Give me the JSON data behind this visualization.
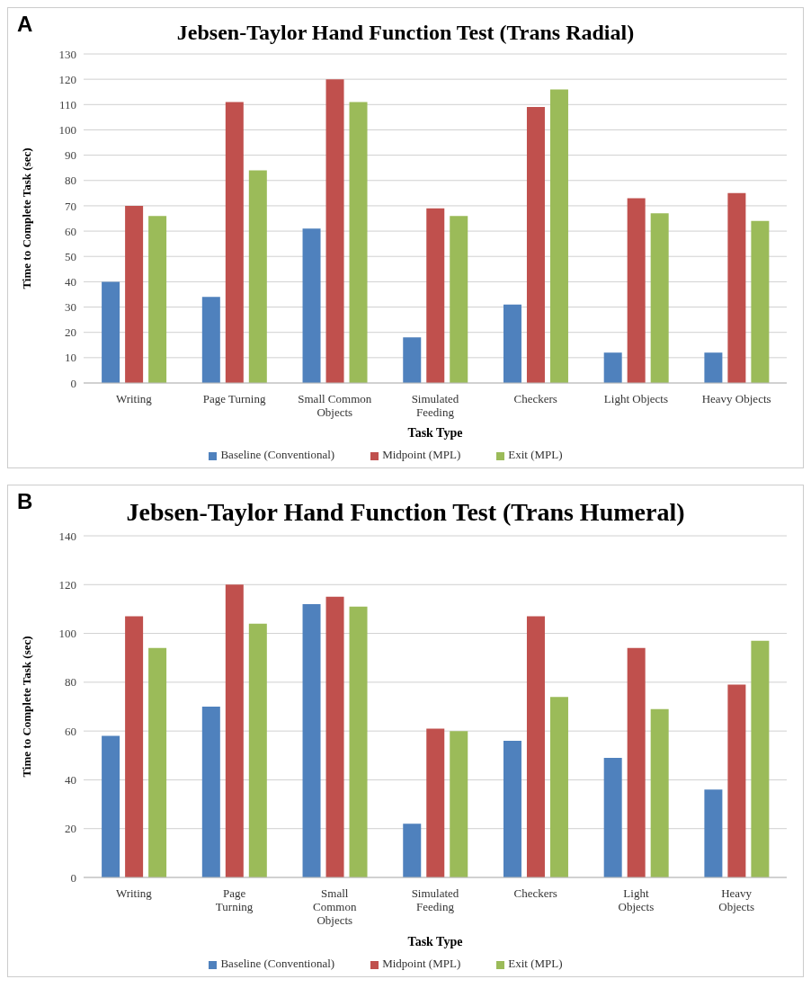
{
  "chart_data": [
    {
      "type": "bar",
      "title": "Jebsen-Taylor Hand Function Test (Trans Radial)",
      "annotations": [
        "A"
      ],
      "xlabel": "Task Type",
      "ylabel": "Time to Complete Task (sec)",
      "categories": [
        "Writing",
        "Page Turning",
        "Small Common Objects",
        "Simulated Feeding",
        "Checkers",
        "Light Objects",
        "Heavy Objects"
      ],
      "series": [
        {
          "name": "Baseline (Conventional)",
          "color": "#4f81bd",
          "values": [
            40,
            34,
            61,
            18,
            31,
            12,
            12
          ]
        },
        {
          "name": "Midpoint (MPL)",
          "color": "#c0504d",
          "values": [
            70,
            111,
            120,
            69,
            109,
            73,
            75
          ]
        },
        {
          "name": "Exit (MPL)",
          "color": "#9bbb59",
          "values": [
            66,
            84,
            111,
            66,
            116,
            67,
            64
          ]
        }
      ],
      "ylim": [
        0,
        130
      ],
      "yticks": [
        0,
        10,
        20,
        30,
        40,
        50,
        60,
        70,
        80,
        90,
        100,
        110,
        120,
        130
      ],
      "grid": "y",
      "legend": "bottom"
    },
    {
      "type": "bar",
      "title": "Jebsen-Taylor Hand Function Test (Trans Humeral)",
      "annotations": [
        "B"
      ],
      "xlabel": "Task Type",
      "ylabel": "Time to Complete Task (sec)",
      "categories": [
        "Writing",
        "Page Turning",
        "Small Common Objects",
        "Simulated Feeding",
        "Checkers",
        "Light Objects",
        "Heavy Objects"
      ],
      "series": [
        {
          "name": "Baseline (Conventional)",
          "color": "#4f81bd",
          "values": [
            58,
            70,
            112,
            22,
            56,
            49,
            36
          ]
        },
        {
          "name": "Midpoint (MPL)",
          "color": "#c0504d",
          "values": [
            107,
            120,
            115,
            61,
            107,
            94,
            79
          ]
        },
        {
          "name": "Exit (MPL)",
          "color": "#9bbb59",
          "values": [
            94,
            104,
            111,
            60,
            74,
            69,
            97
          ]
        }
      ],
      "ylim": [
        0,
        140
      ],
      "yticks": [
        0,
        20,
        40,
        60,
        80,
        100,
        120,
        140
      ],
      "grid": "y",
      "legend": "bottom"
    }
  ]
}
